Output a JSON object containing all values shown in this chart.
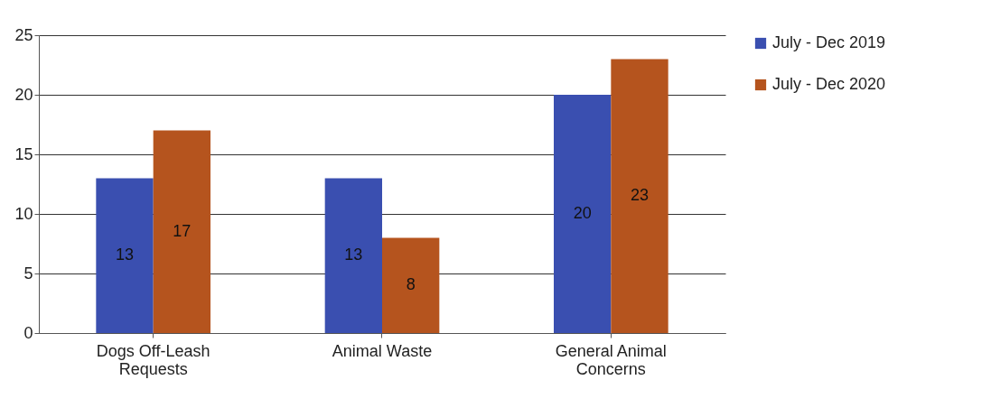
{
  "chart_data": {
    "type": "bar",
    "categories": [
      "Dogs Off-Leash Requests",
      "Animal Waste",
      "General Animal Concerns"
    ],
    "series": [
      {
        "name": "July - Dec 2019",
        "color": "#3a4fb0",
        "values": [
          13,
          13,
          20
        ]
      },
      {
        "name": "July - Dec 2020",
        "color": "#b5541e",
        "values": [
          17,
          8,
          23
        ]
      }
    ],
    "ylim": [
      0,
      25
    ],
    "yticks": [
      0,
      5,
      10,
      15,
      20,
      25
    ],
    "grid": "y",
    "legend": "right",
    "data_labels": true
  }
}
